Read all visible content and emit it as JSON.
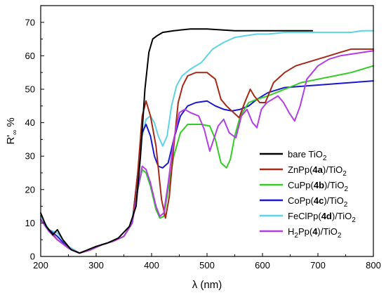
{
  "chart_data": {
    "type": "line",
    "xlabel": "λ (nm)",
    "ylabel": "R'∞ %",
    "xlim": [
      200,
      800
    ],
    "ylim": [
      0,
      75
    ],
    "x_ticks": [
      200,
      300,
      400,
      500,
      600,
      700,
      800
    ],
    "y_ticks": [
      0,
      10,
      20,
      30,
      40,
      50,
      60,
      70
    ],
    "grid": false,
    "legend_position": "bottom-right",
    "series": [
      {
        "name": "bare TiO2",
        "legend": [
          {
            "t": "bare TiO"
          },
          {
            "t": "2",
            "sub": true
          }
        ],
        "color": "#000000",
        "x": [
          200,
          210,
          222,
          230,
          240,
          255,
          270,
          285,
          300,
          320,
          340,
          360,
          372,
          380,
          388,
          395,
          402,
          410,
          420,
          440,
          470,
          500,
          550,
          600,
          650,
          690
        ],
        "y": [
          13,
          9,
          6.5,
          8,
          5,
          2,
          1,
          2,
          3,
          4,
          5.5,
          9,
          15,
          30,
          50,
          61,
          65,
          66,
          67,
          67.5,
          68,
          68,
          67.5,
          67.5,
          67.5,
          67.5
        ]
      },
      {
        "name": "ZnPp(4a)/TiO2",
        "legend": [
          {
            "t": "ZnPp("
          },
          {
            "t": "4a",
            "bold": true
          },
          {
            "t": ")/TiO"
          },
          {
            "t": "2",
            "sub": true
          }
        ],
        "color": "#a52a18",
        "x": [
          200,
          215,
          230,
          250,
          270,
          290,
          310,
          330,
          350,
          365,
          375,
          383,
          390,
          398,
          408,
          418,
          425,
          432,
          440,
          448,
          456,
          465,
          480,
          500,
          515,
          525,
          535,
          548,
          558,
          568,
          578,
          585,
          595,
          605,
          620,
          640,
          660,
          680,
          700,
          720,
          740,
          760,
          780,
          800
        ],
        "y": [
          11,
          8,
          5,
          2.5,
          1,
          2,
          3.5,
          4.5,
          6,
          10,
          25,
          42,
          46.5,
          42,
          33,
          17,
          11.5,
          18,
          33,
          46,
          51,
          54,
          55,
          55,
          53,
          47,
          45,
          43,
          41.5,
          46,
          50,
          48,
          46,
          46,
          52,
          55,
          57,
          58,
          59,
          60,
          61,
          62,
          62,
          62
        ]
      },
      {
        "name": "CuPp(4b)/TiO2",
        "legend": [
          {
            "t": "CuPp("
          },
          {
            "t": "4b",
            "bold": true
          },
          {
            "t": ")/TiO"
          },
          {
            "t": "2",
            "sub": true
          }
        ],
        "color": "#33cc22",
        "x": [
          200,
          215,
          230,
          250,
          270,
          290,
          310,
          330,
          350,
          365,
          375,
          383,
          390,
          398,
          408,
          415,
          422,
          430,
          440,
          452,
          465,
          478,
          490,
          505,
          515,
          525,
          535,
          542,
          550,
          560,
          575,
          590,
          610,
          640,
          670,
          700,
          730,
          760,
          800
        ],
        "y": [
          11,
          7.5,
          5,
          2.5,
          1,
          2,
          3.5,
          4.5,
          6,
          10,
          20,
          26,
          25,
          21,
          14,
          11.5,
          12,
          20,
          30,
          37,
          39.5,
          39.5,
          39.5,
          39,
          35,
          28,
          26.5,
          29,
          36,
          42,
          46,
          47,
          48,
          50,
          52,
          53,
          54,
          55,
          57
        ]
      },
      {
        "name": "CoPp(4c)/TiO2",
        "legend": [
          {
            "t": "CoPp("
          },
          {
            "t": "4c",
            "bold": true
          },
          {
            "t": ")/TiO"
          },
          {
            "t": "2",
            "sub": true
          }
        ],
        "color": "#1a1acc",
        "x": [
          200,
          215,
          230,
          250,
          270,
          290,
          310,
          330,
          350,
          365,
          375,
          383,
          390,
          398,
          405,
          412,
          420,
          430,
          440,
          452,
          465,
          480,
          500,
          515,
          530,
          545,
          560,
          575,
          590,
          610,
          640,
          680,
          720,
          760,
          800
        ],
        "y": [
          11,
          8,
          6,
          2.5,
          1,
          2,
          3.5,
          4.5,
          6,
          10,
          25,
          37,
          39.5,
          36,
          30,
          27,
          26.5,
          28,
          35,
          42,
          45,
          46,
          46.5,
          45,
          44,
          43.5,
          44,
          45,
          47,
          49,
          50.5,
          51,
          51.5,
          52,
          52.5
        ]
      },
      {
        "name": "FeClPp(4d)/TiO2",
        "legend": [
          {
            "t": "FeClPp("
          },
          {
            "t": "4d",
            "bold": true
          },
          {
            "t": ")/TiO"
          },
          {
            "t": "2",
            "sub": true
          }
        ],
        "color": "#5fd3e6",
        "x": [
          200,
          215,
          230,
          250,
          270,
          290,
          310,
          330,
          350,
          365,
          375,
          383,
          390,
          398,
          405,
          412,
          420,
          428,
          436,
          445,
          455,
          470,
          490,
          510,
          530,
          550,
          570,
          590,
          610,
          640,
          670,
          700,
          730,
          760,
          780,
          800
        ],
        "y": [
          12,
          8,
          7,
          3,
          1,
          2,
          3.5,
          4.5,
          6,
          10,
          22,
          36,
          41,
          42,
          40,
          36,
          33,
          36,
          45,
          51,
          54,
          56,
          58,
          62,
          64,
          65.5,
          66,
          66.5,
          66.5,
          67,
          67,
          67,
          67,
          67,
          67.5,
          67.5
        ]
      },
      {
        "name": "H2Pp(4)/TiO2",
        "legend": [
          {
            "t": "H"
          },
          {
            "t": "2",
            "sub": true
          },
          {
            "t": "Pp("
          },
          {
            "t": "4",
            "bold": true
          },
          {
            "t": ")/TiO"
          },
          {
            "t": "2",
            "sub": true
          }
        ],
        "color": "#b23ee6",
        "x": [
          200,
          215,
          230,
          250,
          270,
          290,
          310,
          330,
          350,
          365,
          375,
          383,
          390,
          398,
          408,
          415,
          422,
          430,
          440,
          450,
          460,
          470,
          485,
          495,
          505,
          512,
          520,
          530,
          540,
          552,
          562,
          572,
          582,
          590,
          598,
          608,
          618,
          628,
          638,
          648,
          658,
          668,
          680,
          700,
          720,
          740,
          760,
          780,
          800
        ],
        "y": [
          11,
          7.5,
          5,
          2.5,
          1,
          2,
          3.5,
          4.5,
          6,
          10,
          20,
          27,
          26,
          22,
          15,
          12,
          13,
          22,
          35,
          43,
          44,
          43,
          42,
          38,
          31.5,
          35,
          39,
          41,
          37,
          35.5,
          42,
          44,
          40,
          38.5,
          44,
          46,
          47,
          48,
          46,
          43,
          40.5,
          45,
          53,
          57,
          59,
          60,
          60.5,
          61,
          61.5
        ]
      }
    ]
  }
}
